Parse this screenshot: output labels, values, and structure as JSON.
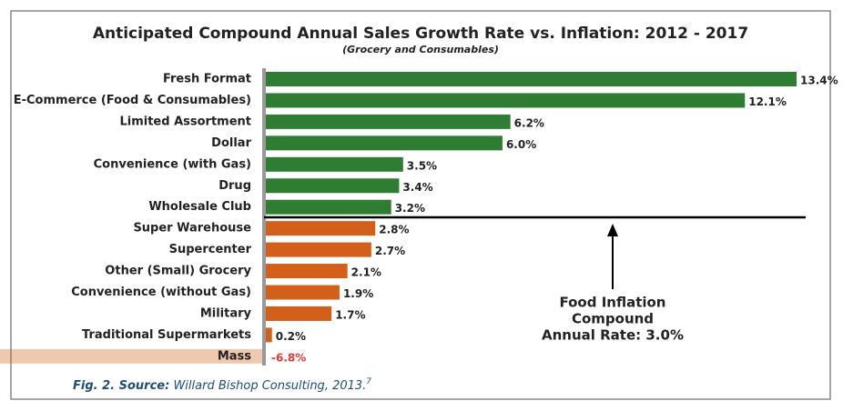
{
  "chart_data": {
    "type": "bar",
    "orientation": "horizontal",
    "title": "Anticipated Compound Annual Sales Growth Rate vs. Inflation: 2012 - 2017",
    "subtitle": "(Grocery and Consumables)",
    "categories": [
      "Fresh Format",
      "E-Commerce (Food & Consumables)",
      "Limited Assortment",
      "Dollar",
      "Convenience (with Gas)",
      "Drug",
      "Wholesale Club",
      "Super Warehouse",
      "Supercenter",
      "Other (Small) Grocery",
      "Convenience (without Gas)",
      "Military",
      "Traditional Supermarkets",
      "Mass"
    ],
    "values": [
      13.4,
      12.1,
      6.2,
      6.0,
      3.5,
      3.4,
      3.2,
      2.8,
      2.7,
      2.1,
      1.9,
      1.7,
      0.2,
      -6.8
    ],
    "value_labels": [
      "13.4%",
      "12.1%",
      "6.2%",
      "6.0%",
      "3.5%",
      "3.4%",
      "3.2%",
      "2.8%",
      "2.7%",
      "2.1%",
      "1.9%",
      "1.7%",
      "0.2%",
      "-6.8%"
    ],
    "colors": [
      "#2e7d32",
      "#2e7d32",
      "#2e7d32",
      "#2e7d32",
      "#2e7d32",
      "#2e7d32",
      "#2e7d32",
      "#d2601a",
      "#d2601a",
      "#d2601a",
      "#d2601a",
      "#d2601a",
      "#d2601a",
      "#d2601a"
    ],
    "negative_label_color": "#e53935",
    "annotation": [
      "Food Inflation",
      "Compound",
      "Annual Rate: 3.0%"
    ],
    "caption": {
      "prefix": "Fig. 2. Source:",
      "text": "Willard Bishop Consulting, 2013.",
      "ref": "7"
    }
  }
}
